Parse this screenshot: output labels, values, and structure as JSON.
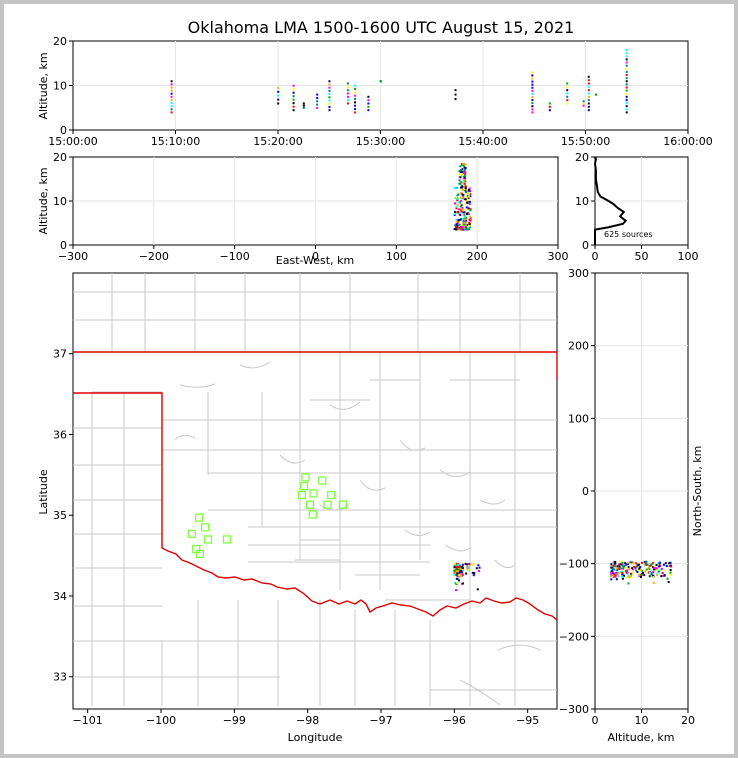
{
  "chart_data": {
    "title": "Oklahoma LMA 1500-1600 UTC August 15, 2021",
    "panels": [
      {
        "id": "time-altitude",
        "type": "scatter",
        "ylabel": "Altitude, km",
        "ylim": [
          0,
          20
        ],
        "yticks": [
          "0",
          "10",
          "20"
        ],
        "xlim_minutes": [
          0,
          60
        ],
        "xticks": [
          "15:00:00",
          "15:10:00",
          "15:20:00",
          "15:30:00",
          "15:40:00",
          "15:50:00",
          "16:00:00"
        ],
        "clusters": [
          {
            "minute": 9.6,
            "alt": [
              4,
              11
            ]
          },
          {
            "minute": 20.0,
            "alt": [
              6,
              9.5
            ]
          },
          {
            "minute": 21.5,
            "alt": [
              4.5,
              10
            ]
          },
          {
            "minute": 22.5,
            "alt": [
              5,
              6
            ]
          },
          {
            "minute": 23.8,
            "alt": [
              5,
              8
            ]
          },
          {
            "minute": 25.0,
            "alt": [
              4.5,
              11
            ]
          },
          {
            "minute": 26.8,
            "alt": [
              6,
              10.5
            ]
          },
          {
            "minute": 27.5,
            "alt": [
              4,
              10
            ]
          },
          {
            "minute": 28.8,
            "alt": [
              4.5,
              7.5
            ]
          },
          {
            "minute": 30.0,
            "alt": [
              11,
              11
            ]
          },
          {
            "minute": 37.3,
            "alt": [
              7,
              9
            ]
          },
          {
            "minute": 44.8,
            "alt": [
              4,
              13
            ]
          },
          {
            "minute": 46.5,
            "alt": [
              4.5,
              6
            ]
          },
          {
            "minute": 48.2,
            "alt": [
              6,
              10.5
            ]
          },
          {
            "minute": 49.8,
            "alt": [
              5.5,
              6.5
            ]
          },
          {
            "minute": 50.3,
            "alt": [
              4.5,
              12
            ]
          },
          {
            "minute": 51.0,
            "alt": [
              8,
              8
            ]
          },
          {
            "minute": 54.0,
            "alt": [
              4,
              18
            ]
          }
        ]
      },
      {
        "id": "ew-altitude",
        "type": "scatter",
        "ylabel": "Altitude, km",
        "xlabel": "East-West, km",
        "xlim": [
          -300,
          300
        ],
        "ylim": [
          0,
          20
        ],
        "xticks": [
          "−300",
          "−200",
          "−100",
          "0",
          "100",
          "200",
          "300"
        ],
        "yticks": [
          "0",
          "10",
          "20"
        ],
        "cluster": {
          "x": [
            172,
            192
          ],
          "alt": [
            3.5,
            18.5
          ]
        }
      },
      {
        "id": "altitude-histogram",
        "type": "line",
        "xlim": [
          0,
          100
        ],
        "ylim": [
          0,
          20
        ],
        "xticks": [
          "0",
          "50",
          "100"
        ],
        "yticks": [
          "0",
          "10",
          "20"
        ],
        "annotation": "625 sources",
        "profile": [
          [
            0,
            0
          ],
          [
            0,
            3.5
          ],
          [
            14,
            4
          ],
          [
            30,
            4.8
          ],
          [
            33,
            5.5
          ],
          [
            27,
            6.5
          ],
          [
            31,
            7.5
          ],
          [
            24,
            8.5
          ],
          [
            20,
            9.3
          ],
          [
            13,
            10.2
          ],
          [
            6,
            11
          ],
          [
            3,
            12
          ],
          [
            2,
            13.5
          ],
          [
            1,
            15
          ],
          [
            1,
            17
          ],
          [
            0,
            18.5
          ],
          [
            1,
            19.5
          ],
          [
            0,
            20
          ]
        ]
      },
      {
        "id": "plan-map",
        "type": "scatter",
        "xlabel": "Longitude",
        "ylabel": "Latitude",
        "xlim": [
          -101.2,
          -94.6
        ],
        "ylim": [
          32.6,
          38.0
        ],
        "xticks": [
          "−101",
          "−100",
          "−99",
          "−98",
          "−97",
          "−96",
          "−95"
        ],
        "yticks": [
          "33",
          "34",
          "35",
          "36",
          "37"
        ],
        "state_border_color": "#e00000",
        "county_line_color": "#c8c8c8",
        "station_color": "#80ff40",
        "stations": [
          [
            -99.48,
            34.97
          ],
          [
            -99.4,
            34.85
          ],
          [
            -99.58,
            34.77
          ],
          [
            -99.36,
            34.7
          ],
          [
            -99.52,
            34.58
          ],
          [
            -99.47,
            34.52
          ],
          [
            -99.1,
            34.7
          ],
          [
            -98.03,
            35.47
          ],
          [
            -98.05,
            35.36
          ],
          [
            -98.08,
            35.25
          ],
          [
            -97.92,
            35.27
          ],
          [
            -97.97,
            35.13
          ],
          [
            -97.8,
            35.43
          ],
          [
            -97.68,
            35.25
          ],
          [
            -97.73,
            35.13
          ],
          [
            -97.52,
            35.13
          ],
          [
            -97.93,
            35.01
          ]
        ],
        "cluster": {
          "lon": [
            -96.05,
            -95.75
          ],
          "lat": [
            34.0,
            34.4
          ]
        }
      },
      {
        "id": "altitude-ns",
        "type": "scatter",
        "xlabel": "Altitude, km",
        "ylabel": "North-South, km",
        "xlim": [
          0,
          20
        ],
        "ylim": [
          -300,
          300
        ],
        "xticks": [
          "0",
          "10",
          "20"
        ],
        "yticks": [
          "−300",
          "−200",
          "−100",
          "0",
          "100",
          "200",
          "300"
        ],
        "cluster": {
          "alt": [
            3.5,
            16.5
          ],
          "y": [
            -130,
            -95
          ]
        }
      }
    ]
  }
}
